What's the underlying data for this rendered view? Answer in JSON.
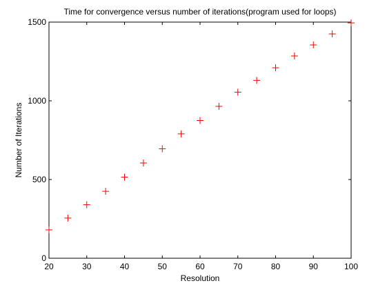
{
  "colors": {
    "background": "#ffffff",
    "axes": "#000000",
    "marker": "#ff0000"
  },
  "chart_data": {
    "type": "scatter",
    "title": "Time for convergence versus number of iterations(program used for loops)",
    "xlabel": "Resolution",
    "ylabel": "Number of Iterations",
    "xlim": [
      20,
      100
    ],
    "ylim": [
      0,
      1500
    ],
    "xticks": [
      20,
      30,
      40,
      50,
      60,
      70,
      80,
      90,
      100
    ],
    "yticks": [
      0,
      500,
      1000,
      1500
    ],
    "grid": false,
    "marker": "+",
    "series": [
      {
        "x": [
          20,
          25,
          30,
          35,
          40,
          45,
          50,
          55,
          60,
          65,
          70,
          75,
          80,
          85,
          90,
          95,
          100
        ],
        "y": [
          180,
          255,
          340,
          425,
          515,
          605,
          695,
          790,
          875,
          965,
          1055,
          1130,
          1210,
          1285,
          1355,
          1425,
          1495
        ]
      }
    ]
  }
}
